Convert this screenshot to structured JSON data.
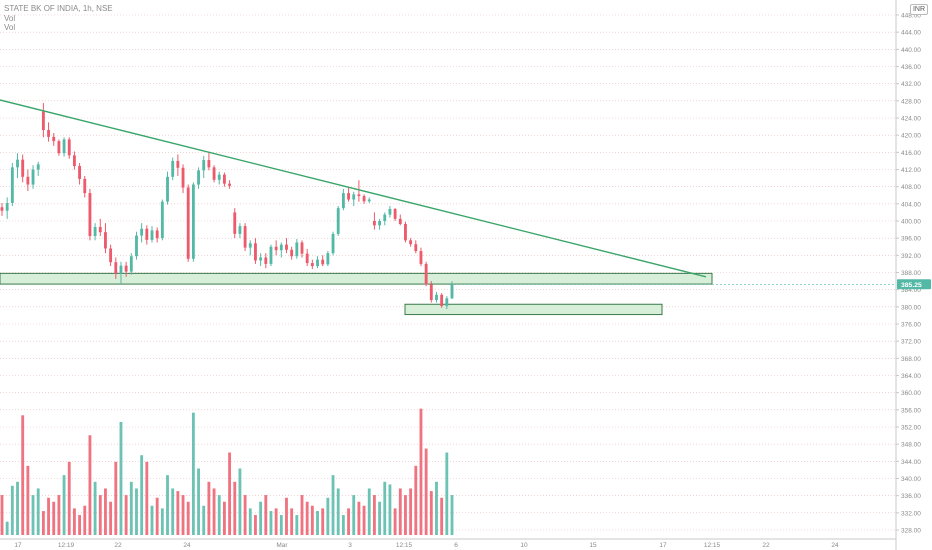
{
  "header": {
    "symbol_line": "STATE BK OF INDIA, 1h, NSE",
    "vol_label_1": "Vol",
    "vol_label_2": "Vol",
    "currency_badge": "INR"
  },
  "colors": {
    "up": "#53b9a6",
    "down": "#ec5a6b",
    "trendline": "#3aa66a",
    "zone_fill": "#d7eed9",
    "zone_border": "#3b7a4a",
    "grid": "#e6b9b9",
    "price_badge": "#53b9a6"
  },
  "chart_data": {
    "type": "candlestick",
    "symbol": "STATE BK OF INDIA",
    "interval": "1h",
    "exchange": "NSE",
    "currency": "INR",
    "last_price_label": "385.25",
    "y_axis": {
      "ticks": [
        "448.00",
        "444.00",
        "440.00",
        "436.00",
        "432.00",
        "428.00",
        "424.00",
        "420.00",
        "416.00",
        "412.00",
        "408.00",
        "404.00",
        "400.00",
        "396.00",
        "392.00",
        "388.00",
        "384.00",
        "380.00",
        "376.00",
        "372.00",
        "368.00",
        "364.00",
        "360.00",
        "356.00",
        "352.00",
        "348.00",
        "344.00",
        "340.00",
        "336.00",
        "332.00",
        "328.00"
      ],
      "range": [
        326,
        450
      ]
    },
    "x_axis": {
      "ticks": [
        "17",
        "12:19",
        "22",
        "24",
        "Mar",
        "3",
        "12:15",
        "6",
        "10",
        "15",
        "17",
        "12:15",
        "22",
        "24"
      ]
    },
    "candles": [
      [
        403.2,
        404.2,
        401.2,
        402.4
      ],
      [
        402.4,
        405.5,
        400.5,
        404.2
      ],
      [
        404.2,
        413.5,
        403.5,
        412.5
      ],
      [
        412.5,
        415.8,
        410.0,
        414.3
      ],
      [
        414.3,
        415.5,
        409.0,
        410.3
      ],
      [
        410.3,
        412.0,
        407.0,
        408.5
      ],
      [
        408.5,
        413.0,
        407.5,
        412.0
      ],
      [
        412.0,
        413.8,
        410.5,
        413.2
      ],
      [
        425.5,
        427.5,
        419.5,
        421.2
      ],
      [
        421.2,
        423.0,
        418.5,
        419.6
      ],
      [
        419.6,
        420.5,
        417.5,
        418.6
      ],
      [
        418.6,
        419.0,
        415.2,
        415.8
      ],
      [
        415.8,
        419.5,
        415.0,
        419.0
      ],
      [
        419.0,
        419.5,
        414.5,
        415.3
      ],
      [
        415.3,
        416.2,
        412.0,
        412.8
      ],
      [
        412.8,
        413.5,
        408.5,
        409.8
      ],
      [
        409.8,
        410.5,
        405.5,
        406.5
      ],
      [
        406.5,
        407.5,
        395.5,
        396.5
      ],
      [
        396.5,
        399.5,
        395.5,
        398.6
      ],
      [
        398.6,
        400.5,
        396.5,
        397.4
      ],
      [
        397.4,
        399.5,
        392.5,
        393.6
      ],
      [
        393.6,
        394.5,
        389.5,
        390.4
      ],
      [
        390.4,
        391.5,
        386.5,
        387.8
      ],
      [
        387.8,
        390.5,
        385.5,
        389.6
      ],
      [
        389.6,
        390.5,
        387.0,
        388.2
      ],
      [
        388.2,
        392.5,
        387.5,
        391.8
      ],
      [
        391.8,
        397.5,
        391.0,
        396.6
      ],
      [
        396.6,
        399.5,
        395.0,
        398.2
      ],
      [
        398.2,
        399.0,
        394.5,
        395.6
      ],
      [
        395.6,
        398.8,
        395.0,
        397.8
      ],
      [
        397.8,
        398.5,
        395.0,
        396.0
      ],
      [
        396.0,
        405.0,
        395.5,
        404.5
      ],
      [
        404.5,
        411.5,
        403.8,
        410.3
      ],
      [
        410.3,
        414.8,
        409.5,
        414.0
      ],
      [
        414.0,
        415.5,
        410.5,
        412.4
      ],
      [
        412.4,
        413.2,
        406.5,
        407.8
      ],
      [
        407.8,
        408.5,
        390.5,
        391.2
      ],
      [
        391.2,
        409.0,
        390.5,
        408.5
      ],
      [
        408.5,
        412.5,
        407.5,
        411.8
      ],
      [
        411.8,
        415.2,
        410.0,
        414.2
      ],
      [
        414.2,
        416.2,
        411.8,
        412.5
      ],
      [
        412.5,
        413.0,
        409.0,
        409.6
      ],
      [
        409.6,
        411.5,
        408.5,
        410.8
      ],
      [
        410.8,
        411.3,
        408.0,
        408.7
      ],
      [
        408.7,
        409.5,
        407.5,
        408.2
      ],
      [
        402.0,
        403.0,
        396.0,
        397.0
      ],
      [
        397.0,
        399.5,
        396.0,
        398.8
      ],
      [
        398.8,
        399.5,
        393.0,
        393.8
      ],
      [
        393.8,
        395.5,
        392.0,
        394.8
      ],
      [
        394.8,
        396.0,
        390.0,
        390.8
      ],
      [
        390.8,
        392.5,
        389.5,
        391.5
      ],
      [
        391.5,
        392.5,
        389.0,
        390.0
      ],
      [
        390.0,
        394.5,
        389.5,
        394.0
      ],
      [
        394.0,
        395.5,
        392.0,
        393.2
      ],
      [
        393.2,
        395.0,
        391.5,
        394.5
      ],
      [
        394.5,
        396.0,
        392.5,
        393.3
      ],
      [
        393.3,
        394.0,
        391.0,
        391.8
      ],
      [
        391.8,
        395.8,
        391.2,
        395.0
      ],
      [
        395.0,
        395.5,
        391.5,
        392.4
      ],
      [
        392.4,
        393.5,
        389.5,
        390.2
      ],
      [
        390.2,
        391.0,
        388.8,
        389.5
      ],
      [
        389.5,
        391.8,
        389.0,
        391.0
      ],
      [
        391.0,
        392.0,
        389.5,
        389.9
      ],
      [
        389.9,
        393.0,
        389.5,
        392.5
      ],
      [
        392.5,
        397.5,
        392.0,
        397.0
      ],
      [
        397.0,
        403.5,
        396.5,
        403.0
      ],
      [
        403.0,
        407.5,
        402.5,
        406.5
      ],
      [
        406.5,
        408.0,
        404.5,
        405.0
      ],
      [
        405.0,
        406.8,
        403.5,
        406.2
      ],
      [
        406.2,
        409.5,
        404.5,
        405.8
      ],
      [
        405.8,
        406.2,
        404.0,
        404.6
      ],
      [
        404.6,
        405.5,
        404.2,
        405.0
      ],
      [
        400.0,
        402.0,
        398.0,
        399.0
      ],
      [
        399.0,
        400.5,
        398.0,
        400.0
      ],
      [
        400.0,
        402.0,
        399.0,
        401.5
      ],
      [
        401.5,
        403.5,
        400.8,
        402.8
      ],
      [
        402.8,
        403.0,
        400.0,
        400.5
      ],
      [
        400.5,
        401.5,
        399.0,
        399.3
      ],
      [
        399.3,
        399.8,
        395.0,
        395.5
      ],
      [
        395.5,
        396.0,
        394.0,
        394.6
      ],
      [
        394.6,
        395.5,
        392.5,
        393.0
      ],
      [
        393.0,
        393.8,
        389.5,
        390.0
      ],
      [
        390.0,
        390.5,
        384.8,
        385.2
      ],
      [
        385.2,
        386.0,
        381.0,
        381.6
      ],
      [
        381.6,
        383.5,
        381.0,
        382.8
      ],
      [
        382.8,
        383.2,
        379.8,
        380.2
      ],
      [
        380.2,
        382.5,
        379.5,
        382.0
      ],
      [
        382.0,
        386.0,
        381.8,
        385.25
      ]
    ],
    "volume": [],
    "trendline": [
      [
        "12:19",
        "2024-02-19T09:15"
      ],
      {
        "from_price": 428.2,
        "to_price": 387.0,
        "to_label": "12:15"
      }
    ],
    "zones": [
      {
        "top": 387.8,
        "bottom": 385.3
      },
      {
        "top": 380.6,
        "bottom": 378.2
      }
    ]
  }
}
